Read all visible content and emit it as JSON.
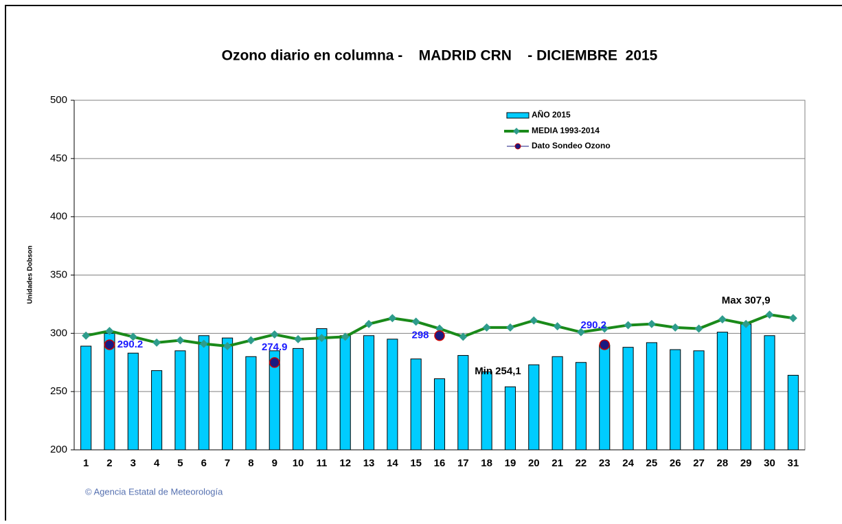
{
  "chart_data": {
    "type": "bar",
    "title": "Ozono diario en columna -    MADRID CRN    - DICIEMBRE  2015",
    "y_label": "Unidades Dobson",
    "footer": "© Agencia Estatal de Meteorología",
    "categories": [
      "1",
      "2",
      "3",
      "4",
      "5",
      "6",
      "7",
      "8",
      "9",
      "10",
      "11",
      "12",
      "13",
      "14",
      "15",
      "16",
      "17",
      "18",
      "19",
      "20",
      "21",
      "22",
      "23",
      "24",
      "25",
      "26",
      "27",
      "28",
      "29",
      "30",
      "31"
    ],
    "series": [
      {
        "name": "AÑO 2015",
        "type": "bar",
        "color": "#00ccff",
        "values": [
          289,
          300,
          283,
          268,
          285,
          298,
          296,
          280,
          285,
          287,
          304,
          298,
          298,
          295,
          278,
          261,
          281,
          267,
          254.1,
          273,
          280,
          275,
          290,
          288,
          292,
          286,
          285,
          301,
          307.9,
          298,
          264
        ],
        "value_labels": [
          null,
          null,
          null,
          null,
          null,
          null,
          null,
          null,
          null,
          null,
          null,
          null,
          null,
          null,
          null,
          null,
          null,
          null,
          "Min 254,1",
          null,
          null,
          null,
          null,
          null,
          null,
          null,
          null,
          null,
          "Max 307,9",
          null,
          null
        ]
      },
      {
        "name": "MEDIA 1993-2014",
        "type": "line",
        "color": "#1a8a1a",
        "marker_color": "#2e9c8c",
        "values": [
          298,
          302,
          297,
          292,
          294,
          291,
          289,
          294,
          299,
          295,
          296,
          297,
          308,
          313,
          310,
          304,
          297,
          305,
          305,
          311,
          306,
          301,
          304,
          307,
          308,
          305,
          304,
          312,
          308,
          316,
          313
        ]
      },
      {
        "name": "Dato Sondeo Ozono",
        "type": "scatter",
        "color": "#1a1a80",
        "edge_color": "#cc0000",
        "values": [
          null,
          290.2,
          null,
          null,
          null,
          null,
          null,
          null,
          274.9,
          null,
          null,
          null,
          null,
          null,
          null,
          298,
          null,
          null,
          null,
          null,
          null,
          null,
          290.2,
          null,
          null,
          null,
          null,
          null,
          null,
          null,
          null
        ],
        "value_labels": [
          null,
          "290.2",
          null,
          null,
          null,
          null,
          null,
          null,
          "274.9",
          null,
          null,
          null,
          null,
          null,
          null,
          "298",
          null,
          null,
          null,
          null,
          null,
          null,
          "290.2",
          null,
          null,
          null,
          null,
          null,
          null,
          null,
          null
        ]
      }
    ],
    "ylim": [
      200,
      500
    ],
    "yticks": [
      200,
      250,
      300,
      350,
      400,
      450,
      500
    ],
    "grid": true
  }
}
